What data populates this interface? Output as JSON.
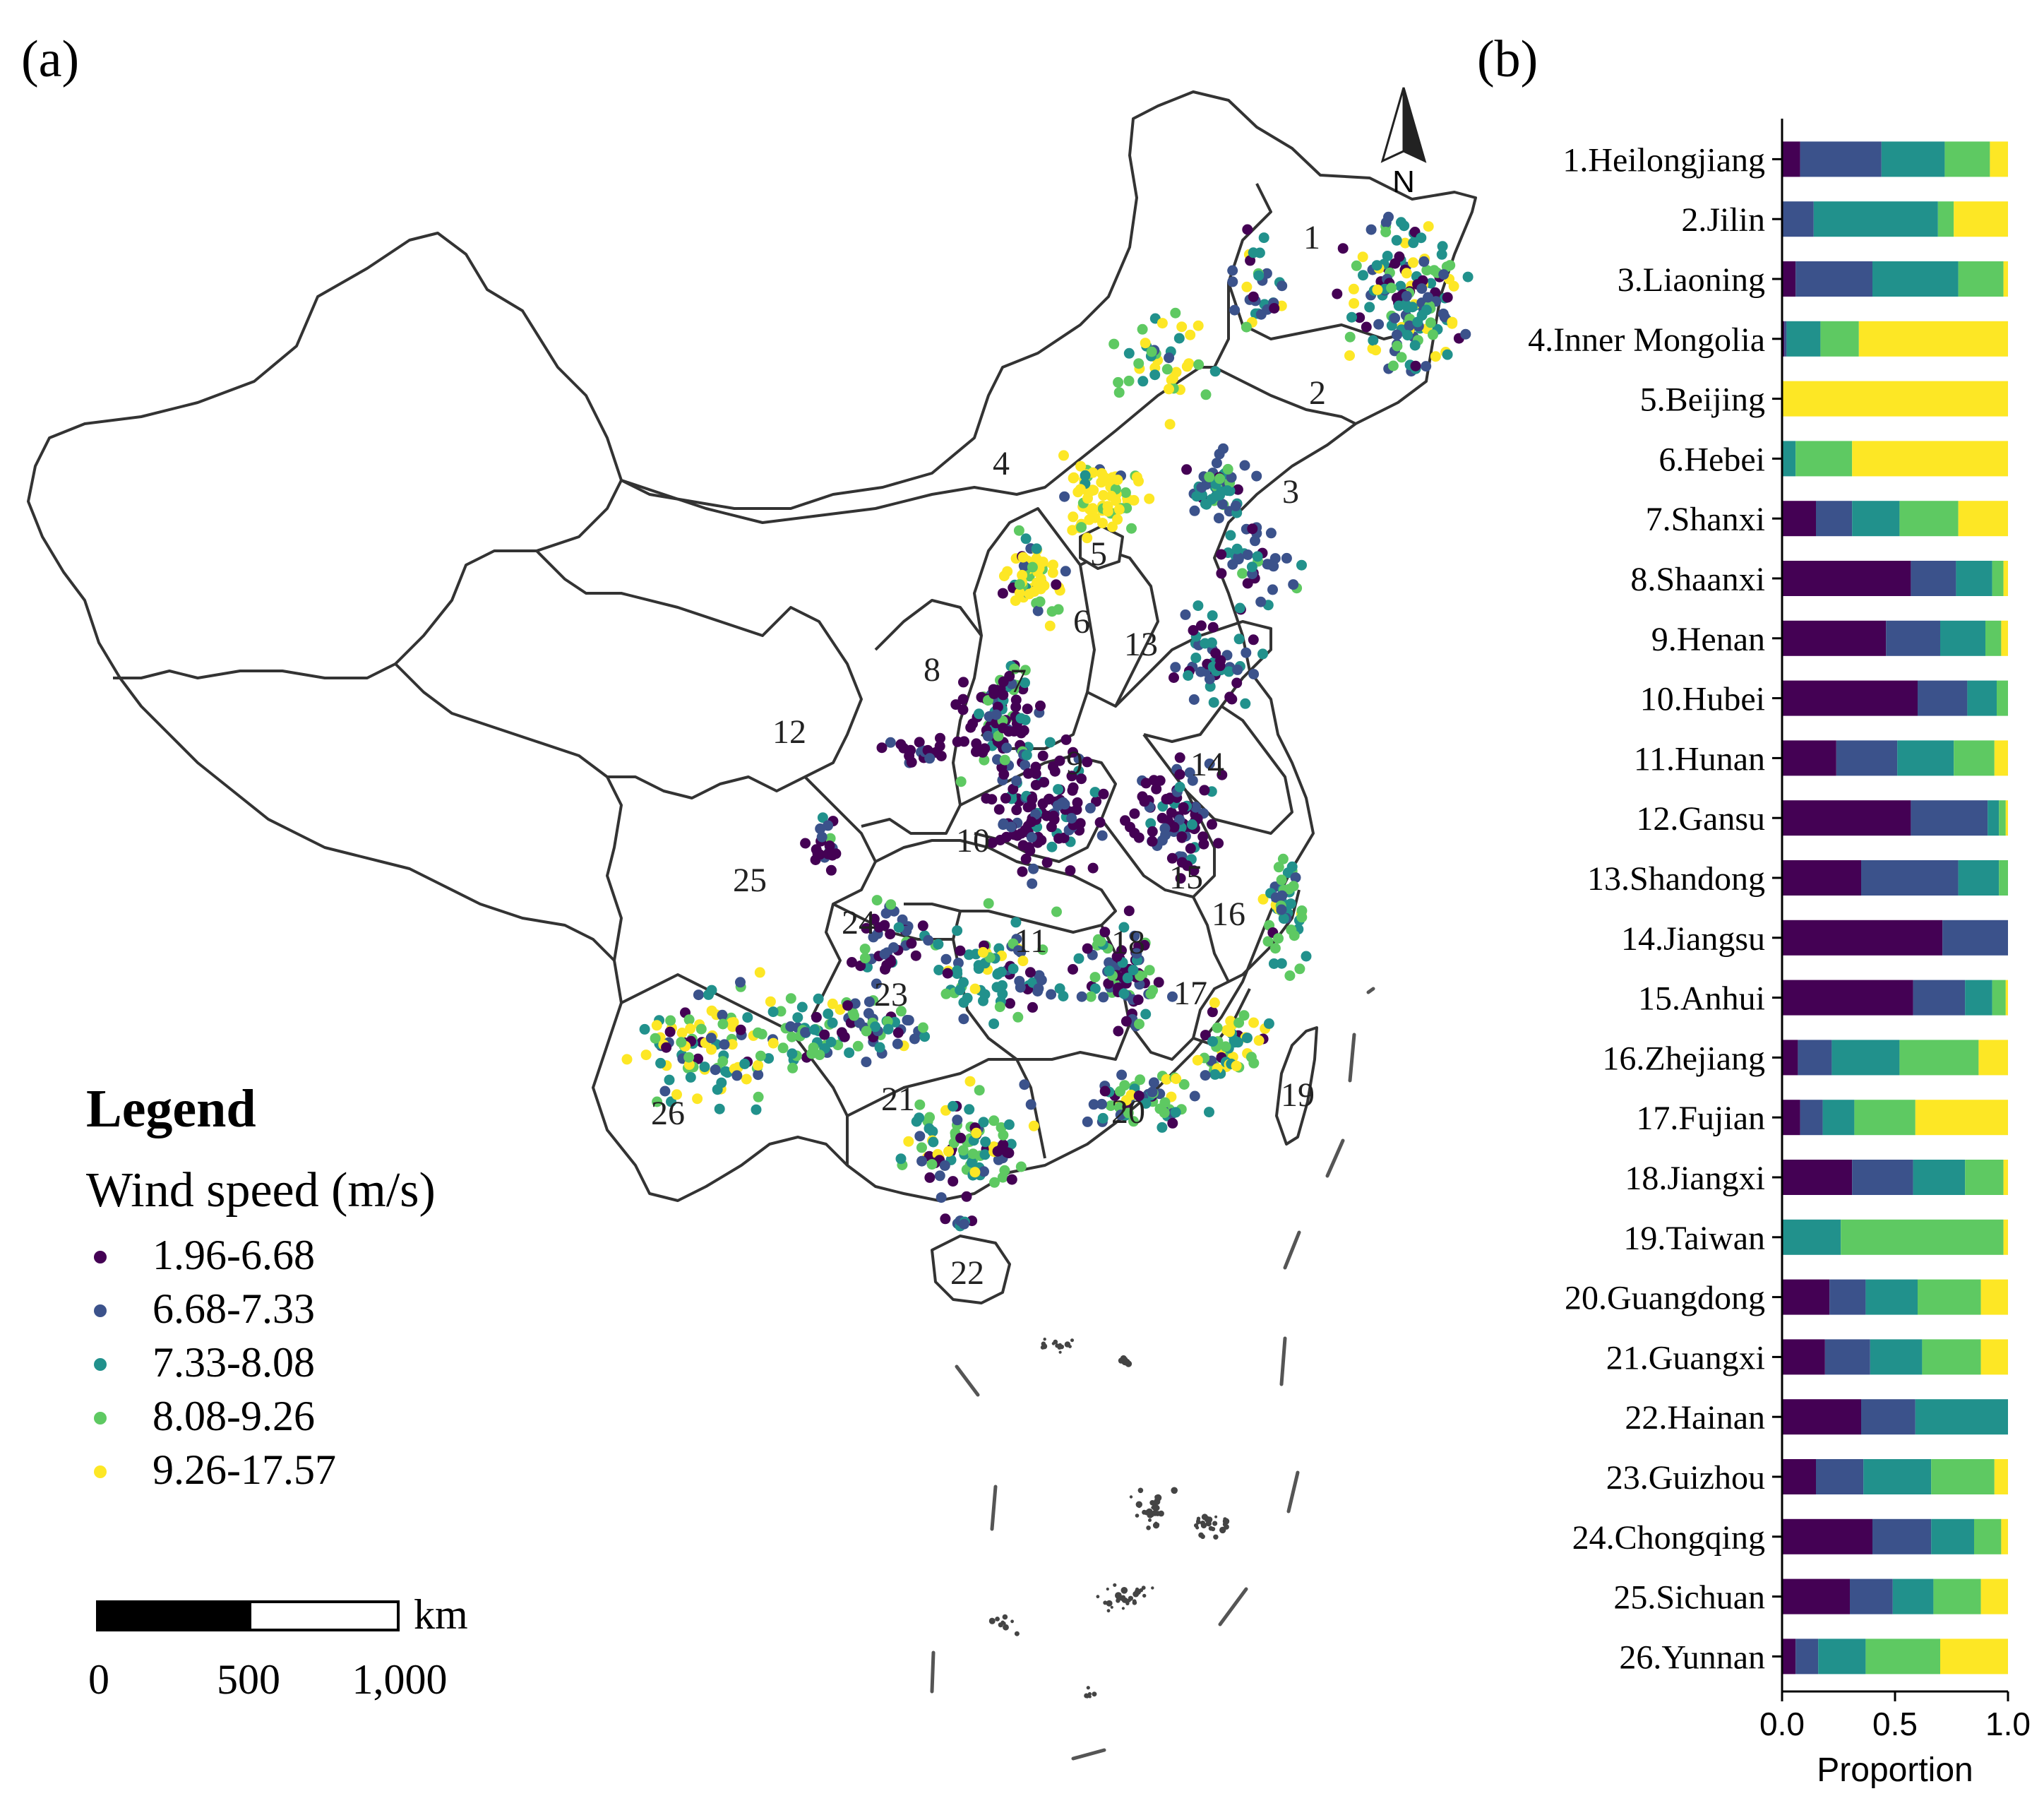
{
  "panel_a": {
    "label": "(a)",
    "north_label": "N",
    "legend": {
      "title": "Legend",
      "subtitle": "Wind speed (m/s)",
      "items": [
        "1.96-6.68",
        "6.68-7.33",
        "7.33-8.08",
        "8.08-9.26",
        "9.26-17.57"
      ]
    },
    "scale_bar": {
      "unit": "km",
      "ticks": [
        "0",
        "500",
        "1,000"
      ]
    },
    "region_numbers": [
      "1",
      "2",
      "3",
      "4",
      "5",
      "6",
      "7",
      "8",
      "9",
      "10",
      "11",
      "12",
      "13",
      "14",
      "15",
      "16",
      "17",
      "18",
      "19",
      "20",
      "21",
      "22",
      "23",
      "24",
      "25",
      "26"
    ]
  },
  "panel_b": {
    "label": "(b)"
  },
  "colors": {
    "class1": "#440154",
    "class2": "#3b528b",
    "class3": "#21918c",
    "class4": "#5ec962",
    "class5": "#fde725",
    "outline": "#333333"
  },
  "chart_data": {
    "type": "bar",
    "orientation": "horizontal",
    "stacked": true,
    "title": "",
    "xlabel": "Proportion",
    "ylabel": "",
    "xlim": [
      0,
      1
    ],
    "xticks": [
      "0.0",
      "0.5",
      "1.0"
    ],
    "categories": [
      "1.Heilongjiang",
      "2.Jilin",
      "3.Liaoning",
      "4.Inner Mongolia",
      "5.Beijing",
      "6.Hebei",
      "7.Shanxi",
      "8.Shaanxi",
      "9.Henan",
      "10.Hubei",
      "11.Hunan",
      "12.Gansu",
      "13.Shandong",
      "14.Jiangsu",
      "15.Anhui",
      "16.Zhejiang",
      "17.Fujian",
      "18.Jiangxi",
      "19.Taiwan",
      "20.Guangdong",
      "21.Guangxi",
      "22.Hainan",
      "23.Guizhou",
      "24.Chongqing",
      "25.Sichuan",
      "26.Yunnan"
    ],
    "series": [
      {
        "name": "1.96-6.68",
        "values": [
          0.08,
          0.0,
          0.06,
          0.01,
          0.0,
          0.0,
          0.15,
          0.57,
          0.46,
          0.6,
          0.24,
          0.57,
          0.35,
          0.71,
          0.58,
          0.07,
          0.08,
          0.31,
          0.0,
          0.21,
          0.19,
          0.35,
          0.15,
          0.4,
          0.3,
          0.06
        ]
      },
      {
        "name": "6.68-7.33",
        "values": [
          0.36,
          0.14,
          0.34,
          0.01,
          0.0,
          0.0,
          0.16,
          0.2,
          0.24,
          0.22,
          0.27,
          0.34,
          0.43,
          0.29,
          0.23,
          0.15,
          0.1,
          0.27,
          0.0,
          0.16,
          0.2,
          0.24,
          0.21,
          0.26,
          0.19,
          0.1
        ]
      },
      {
        "name": "7.33-8.08",
        "values": [
          0.28,
          0.55,
          0.38,
          0.15,
          0.0,
          0.06,
          0.21,
          0.16,
          0.2,
          0.13,
          0.25,
          0.05,
          0.18,
          0.0,
          0.12,
          0.3,
          0.14,
          0.23,
          0.26,
          0.23,
          0.23,
          0.41,
          0.3,
          0.19,
          0.18,
          0.21
        ]
      },
      {
        "name": "8.08-9.26",
        "values": [
          0.2,
          0.07,
          0.2,
          0.17,
          0.0,
          0.25,
          0.26,
          0.05,
          0.07,
          0.05,
          0.18,
          0.03,
          0.04,
          0.0,
          0.06,
          0.35,
          0.27,
          0.17,
          0.72,
          0.28,
          0.26,
          0.0,
          0.28,
          0.12,
          0.21,
          0.33
        ]
      },
      {
        "name": "9.26-17.57",
        "values": [
          0.08,
          0.24,
          0.02,
          0.66,
          1.0,
          0.69,
          0.22,
          0.02,
          0.03,
          0.0,
          0.06,
          0.01,
          0.0,
          0.0,
          0.01,
          0.13,
          0.41,
          0.02,
          0.02,
          0.12,
          0.12,
          0.0,
          0.06,
          0.03,
          0.12,
          0.3
        ]
      }
    ]
  }
}
